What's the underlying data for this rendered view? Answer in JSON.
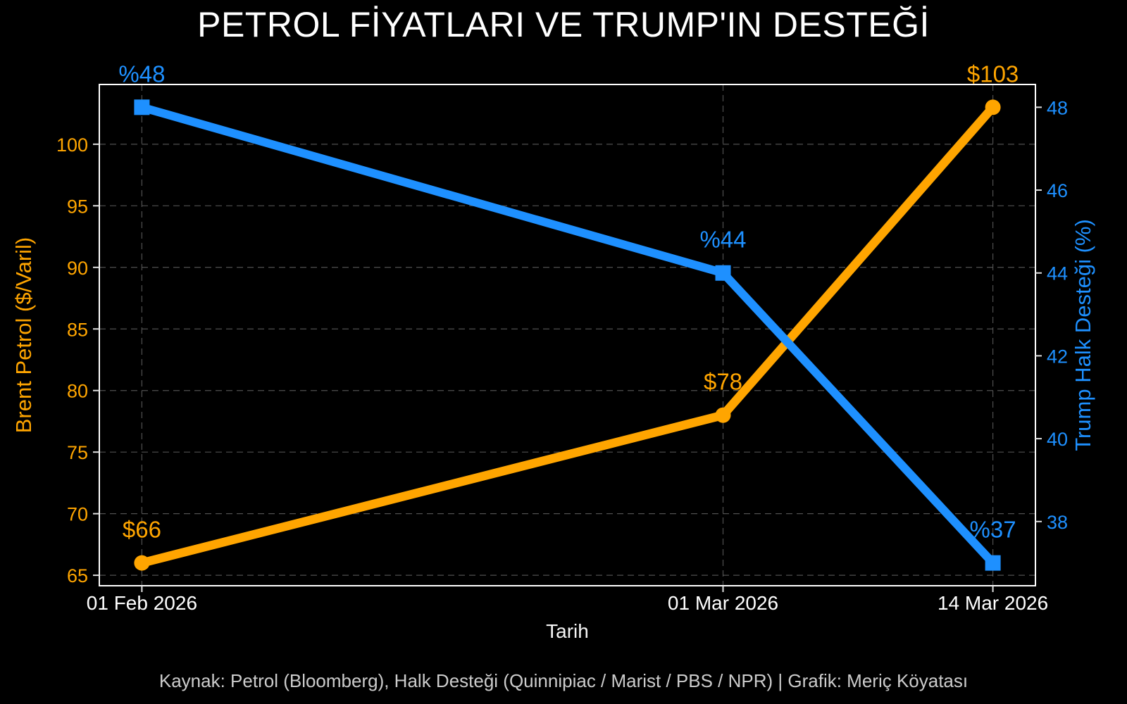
{
  "title": "PETROL FİYATLARI VE TRUMP'IN DESTEĞİ",
  "caption": "Kaynak: Petrol (Bloomberg), Halk Desteği (Quinnipiac / Marist / PBS / NPR) | Grafik: Meriç Köyatası",
  "colors": {
    "background": "#000000",
    "oil": "#FFA500",
    "approval": "#1E90FF",
    "grid": "#5E5E5E",
    "border": "#FFFFFF",
    "tick": "#E0E0E0",
    "x_tick_label": "#FFFFFF",
    "title_text": "#FFFFFF",
    "caption_text": "#CCCCCC"
  },
  "chart_data": {
    "type": "line",
    "title": "PETROL FİYATLARI VE TRUMP'IN DESTEĞİ",
    "xlabel": "Tarih",
    "grid": true,
    "legend": "none",
    "x_ticklabels": [
      "01 Feb 2026",
      "01 Mar 2026",
      "14 Mar 2026"
    ],
    "x_days": [
      0,
      28,
      41
    ],
    "x_range_days": [
      -2.05,
      43.05
    ],
    "left_axis": {
      "label": "Brent Petrol ($/Varil)",
      "color": "#FFA500",
      "ticks": [
        65,
        70,
        75,
        80,
        85,
        90,
        95,
        100
      ],
      "range": [
        64.15,
        104.85
      ]
    },
    "right_axis": {
      "label": "Trump Halk Desteği (%)",
      "color": "#1E90FF",
      "ticks": [
        38,
        40,
        42,
        44,
        46,
        48
      ],
      "range": [
        36.45,
        48.55
      ]
    },
    "series": [
      {
        "name": "Brent Petrol ($/Varil)",
        "axis": "left",
        "color": "#FFA500",
        "marker": "circle",
        "line_width": 12.5,
        "values": [
          66,
          78,
          103
        ],
        "point_labels": [
          "$66",
          "$78",
          "$103"
        ]
      },
      {
        "name": "Trump Halk Desteği (%)",
        "axis": "right",
        "color": "#1E90FF",
        "marker": "square",
        "line_width": 12,
        "values": [
          48,
          44,
          37
        ],
        "point_labels": [
          "%48",
          "%44",
          "%37"
        ]
      }
    ]
  }
}
